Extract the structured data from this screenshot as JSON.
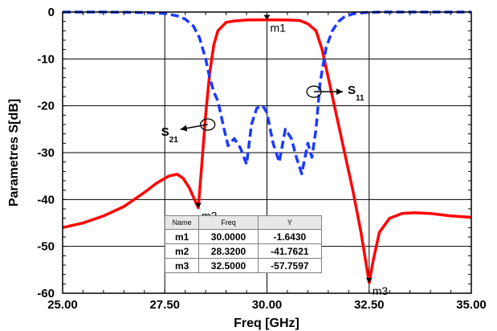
{
  "chart_data": {
    "type": "line",
    "title": "",
    "xlabel": "Freq [GHz]",
    "ylabel": "Parametres S[dB]",
    "xlim": [
      25,
      35
    ],
    "ylim": [
      -60,
      0
    ],
    "xticks": [
      25,
      27.5,
      30,
      32.5,
      35
    ],
    "xtick_labels": [
      "25.00",
      "27.50",
      "30.00",
      "32.50",
      "35.00"
    ],
    "yticks": [
      0,
      -10,
      -20,
      -30,
      -40,
      -50,
      -60
    ],
    "ytick_labels": [
      "0",
      "-10",
      "-20",
      "-30",
      "-40",
      "-50",
      "-60"
    ],
    "grid": true,
    "series": [
      {
        "name": "S21",
        "color": "#ff0000",
        "style": "solid",
        "x": [
          25.0,
          25.5,
          26.0,
          26.5,
          27.0,
          27.3,
          27.6,
          27.8,
          27.95,
          28.1,
          28.2,
          28.32,
          28.4,
          28.5,
          28.6,
          28.7,
          28.8,
          29.0,
          29.2,
          29.5,
          30.0,
          30.5,
          30.8,
          31.0,
          31.2,
          31.35,
          31.5,
          31.7,
          31.9,
          32.1,
          32.3,
          32.45,
          32.5,
          32.6,
          32.75,
          33.0,
          33.3,
          33.6,
          34.0,
          34.5,
          35.0
        ],
        "y": [
          -46.0,
          -45.0,
          -43.5,
          -41.5,
          -38.5,
          -36.5,
          -35.0,
          -34.6,
          -35.5,
          -37.5,
          -39.5,
          -41.76,
          -33.0,
          -22.0,
          -13.0,
          -7.0,
          -4.0,
          -2.2,
          -1.9,
          -1.7,
          -1.64,
          -1.7,
          -1.8,
          -2.5,
          -4.0,
          -8.0,
          -14.0,
          -22.0,
          -30.0,
          -38.0,
          -47.0,
          -55.0,
          -57.76,
          -53.0,
          -47.0,
          -44.0,
          -43.0,
          -42.8,
          -43.0,
          -43.5,
          -43.8
        ]
      },
      {
        "name": "S11",
        "color": "#1a3aff",
        "style": "dashed",
        "x": [
          25.0,
          26.0,
          27.0,
          27.5,
          27.8,
          28.0,
          28.2,
          28.35,
          28.5,
          28.6,
          28.7,
          28.8,
          28.95,
          29.05,
          29.2,
          29.35,
          29.5,
          29.62,
          29.75,
          29.9,
          30.0,
          30.15,
          30.3,
          30.45,
          30.6,
          30.72,
          30.85,
          31.0,
          31.1,
          31.2,
          31.3,
          31.45,
          31.6,
          31.75,
          31.9,
          32.1,
          32.4,
          32.8,
          33.5,
          34.5,
          35.0
        ],
        "y": [
          0,
          0,
          -0.1,
          -0.3,
          -0.8,
          -1.5,
          -3.0,
          -5.5,
          -10.0,
          -14.0,
          -17.0,
          -19.0,
          -25.0,
          -28.5,
          -27.0,
          -29.0,
          -32.5,
          -24.0,
          -20.5,
          -20.0,
          -21.5,
          -28.0,
          -32.0,
          -25.0,
          -27.0,
          -31.0,
          -34.5,
          -28.0,
          -31.0,
          -25.0,
          -15.0,
          -7.5,
          -4.0,
          -2.0,
          -1.0,
          -0.4,
          -0.1,
          0,
          0,
          0,
          0
        ]
      }
    ],
    "markers": [
      {
        "label": "m1",
        "x": 30.0,
        "y": -1.643,
        "series": "S21"
      },
      {
        "label": "m2",
        "x": 28.32,
        "y": -41.7621,
        "series": "S21"
      },
      {
        "label": "m3",
        "x": 32.5,
        "y": -57.7597,
        "series": "S21"
      }
    ],
    "annotations": [
      {
        "main": "S",
        "sub": "11",
        "x": 31.15,
        "y": -17.0
      },
      {
        "main": "S",
        "sub": "21",
        "x": 28.55,
        "y": -24.0
      }
    ],
    "marker_table": {
      "headers": [
        "Name",
        "Freq",
        "Y"
      ],
      "rows": [
        [
          "m1",
          "30.0000",
          "-1.6430"
        ],
        [
          "m2",
          "28.3200",
          "-41.7621"
        ],
        [
          "m3",
          "32.5000",
          "-57.7597"
        ]
      ]
    }
  }
}
